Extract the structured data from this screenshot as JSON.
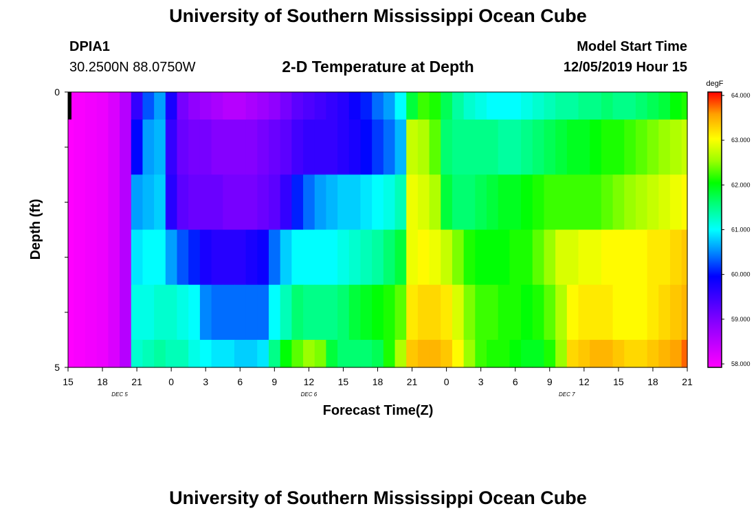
{
  "page": {
    "title_top": "University of Southern Mississippi Ocean Cube",
    "station": "DPIA1",
    "coords": "30.2500N 88.0750W",
    "chart_title": "2-D Temperature at Depth",
    "model_label": "Model Start Time",
    "model_time": "12/05/2019 Hour 15",
    "title_bottom": "University of Southern Mississippi Ocean Cube"
  },
  "chart_data": {
    "type": "heatmap",
    "title": "2-D Temperature at Depth",
    "xlabel": "Forecast Time(Z)",
    "ylabel": "Depth (ft)",
    "x_hours": [
      15,
      16,
      17,
      18,
      19,
      20,
      21,
      22,
      23,
      0,
      1,
      2,
      3,
      4,
      5,
      6,
      7,
      8,
      9,
      10,
      11,
      12,
      13,
      14,
      15,
      16,
      17,
      18,
      19,
      20,
      21,
      22,
      23,
      0,
      1,
      2,
      3,
      4,
      5,
      6,
      7,
      8,
      9,
      10,
      11,
      12,
      13,
      14,
      15,
      16,
      17,
      18,
      19,
      20,
      21
    ],
    "x_tick_labels": [
      "15",
      "18",
      "21",
      "0",
      "3",
      "6",
      "9",
      "12",
      "15",
      "18",
      "21",
      "0",
      "3",
      "6",
      "9",
      "12",
      "15",
      "18",
      "21"
    ],
    "date_labels": [
      {
        "label": "DEC 5",
        "hour_offset": 4.5
      },
      {
        "label": "DEC 6",
        "hour_offset": 21
      },
      {
        "label": "DEC 7",
        "hour_offset": 43.5
      }
    ],
    "y_tick_labels": [
      "0",
      "5"
    ],
    "ylim": [
      0,
      5
    ],
    "depth_bins": [
      "0-0.5",
      "0.5-1.5",
      "1.5-2.5",
      "2.5-3.5",
      "3.5-4.5",
      "4.5-5"
    ],
    "values": [
      [
        58.0,
        58.05,
        58.1,
        58.15,
        58.3,
        58.6,
        59.6,
        60.3,
        60.6,
        59.8,
        59.1,
        58.9,
        58.8,
        58.7,
        58.6,
        58.6,
        58.7,
        58.8,
        58.9,
        59.1,
        59.3,
        59.4,
        59.5,
        59.6,
        59.7,
        59.9,
        60.1,
        60.4,
        60.6,
        61.0,
        61.8,
        62.2,
        62.1,
        61.7,
        61.4,
        61.2,
        61.1,
        61.0,
        61.0,
        61.0,
        61.1,
        61.2,
        61.3,
        61.4,
        61.4,
        61.5,
        61.5,
        61.6,
        61.5,
        61.5,
        61.6,
        61.7,
        61.8,
        62.0,
        62.1
      ],
      [
        58.0,
        58.05,
        58.1,
        58.15,
        58.3,
        58.6,
        60.0,
        60.6,
        60.7,
        59.6,
        59.2,
        59.1,
        59.1,
        59.0,
        59.0,
        59.0,
        59.0,
        59.1,
        59.2,
        59.3,
        59.5,
        59.6,
        59.6,
        59.6,
        59.7,
        59.8,
        60.0,
        60.2,
        60.4,
        60.7,
        62.7,
        62.6,
        62.3,
        61.6,
        61.5,
        61.5,
        61.5,
        61.5,
        61.4,
        61.4,
        61.5,
        61.6,
        61.7,
        61.8,
        61.9,
        61.9,
        62.0,
        62.1,
        62.1,
        62.2,
        62.3,
        62.4,
        62.5,
        62.6,
        62.7
      ],
      [
        58.0,
        58.05,
        58.1,
        58.15,
        58.3,
        58.6,
        60.6,
        60.7,
        60.8,
        59.7,
        59.3,
        59.2,
        59.2,
        59.2,
        59.1,
        59.1,
        59.1,
        59.2,
        59.3,
        59.6,
        60.1,
        60.4,
        60.6,
        60.7,
        60.8,
        60.8,
        60.9,
        61.0,
        61.1,
        61.3,
        62.9,
        62.8,
        62.6,
        61.8,
        61.6,
        61.6,
        61.7,
        61.8,
        61.9,
        61.9,
        62.0,
        62.1,
        62.2,
        62.2,
        62.2,
        62.2,
        62.2,
        62.3,
        62.4,
        62.5,
        62.6,
        62.7,
        62.8,
        62.9,
        63.0
      ],
      [
        58.0,
        58.05,
        58.1,
        58.15,
        58.3,
        58.6,
        60.9,
        61.0,
        61.0,
        60.6,
        60.3,
        60.1,
        59.8,
        59.7,
        59.7,
        59.7,
        59.8,
        59.9,
        60.4,
        60.8,
        61.0,
        61.0,
        61.0,
        61.0,
        61.1,
        61.2,
        61.3,
        61.4,
        61.6,
        61.8,
        62.9,
        63.0,
        62.9,
        62.7,
        62.4,
        62.1,
        62.0,
        62.0,
        62.0,
        62.1,
        62.1,
        62.3,
        62.5,
        62.8,
        62.8,
        62.9,
        62.9,
        63.0,
        63.0,
        63.0,
        63.0,
        63.1,
        63.1,
        63.2,
        63.3
      ],
      [
        58.0,
        58.05,
        58.1,
        58.15,
        58.3,
        58.6,
        61.1,
        61.1,
        61.2,
        61.2,
        61.1,
        61.0,
        60.5,
        60.4,
        60.4,
        60.4,
        60.4,
        60.4,
        61.0,
        61.3,
        61.6,
        61.5,
        61.5,
        61.5,
        61.6,
        61.8,
        61.9,
        62.0,
        62.1,
        62.3,
        63.1,
        63.2,
        63.2,
        63.1,
        62.8,
        62.4,
        62.2,
        62.2,
        62.1,
        62.1,
        62.0,
        62.1,
        62.3,
        62.6,
        63.0,
        63.1,
        63.1,
        63.1,
        63.0,
        63.0,
        63.0,
        63.1,
        63.2,
        63.3,
        63.4
      ],
      [
        58.0,
        58.05,
        58.1,
        58.15,
        58.3,
        58.6,
        61.2,
        61.3,
        61.4,
        61.3,
        61.3,
        61.1,
        61.0,
        60.9,
        60.9,
        60.8,
        60.8,
        60.9,
        61.5,
        62.0,
        62.3,
        62.5,
        62.4,
        61.8,
        61.6,
        61.6,
        61.6,
        61.7,
        62.1,
        62.6,
        63.3,
        63.4,
        63.4,
        63.3,
        63.0,
        62.5,
        62.2,
        62.1,
        62.1,
        62.0,
        61.9,
        61.9,
        62.1,
        62.5,
        63.2,
        63.3,
        63.4,
        63.4,
        63.3,
        63.2,
        63.2,
        63.3,
        63.4,
        63.5,
        63.7
      ]
    ],
    "colorbar": {
      "unit": "degF",
      "min": 58.0,
      "max": 64.0,
      "tick_labels": [
        "64.000",
        "63.000",
        "62.000",
        "61.000",
        "60.000",
        "59.000",
        "58.000"
      ]
    }
  }
}
